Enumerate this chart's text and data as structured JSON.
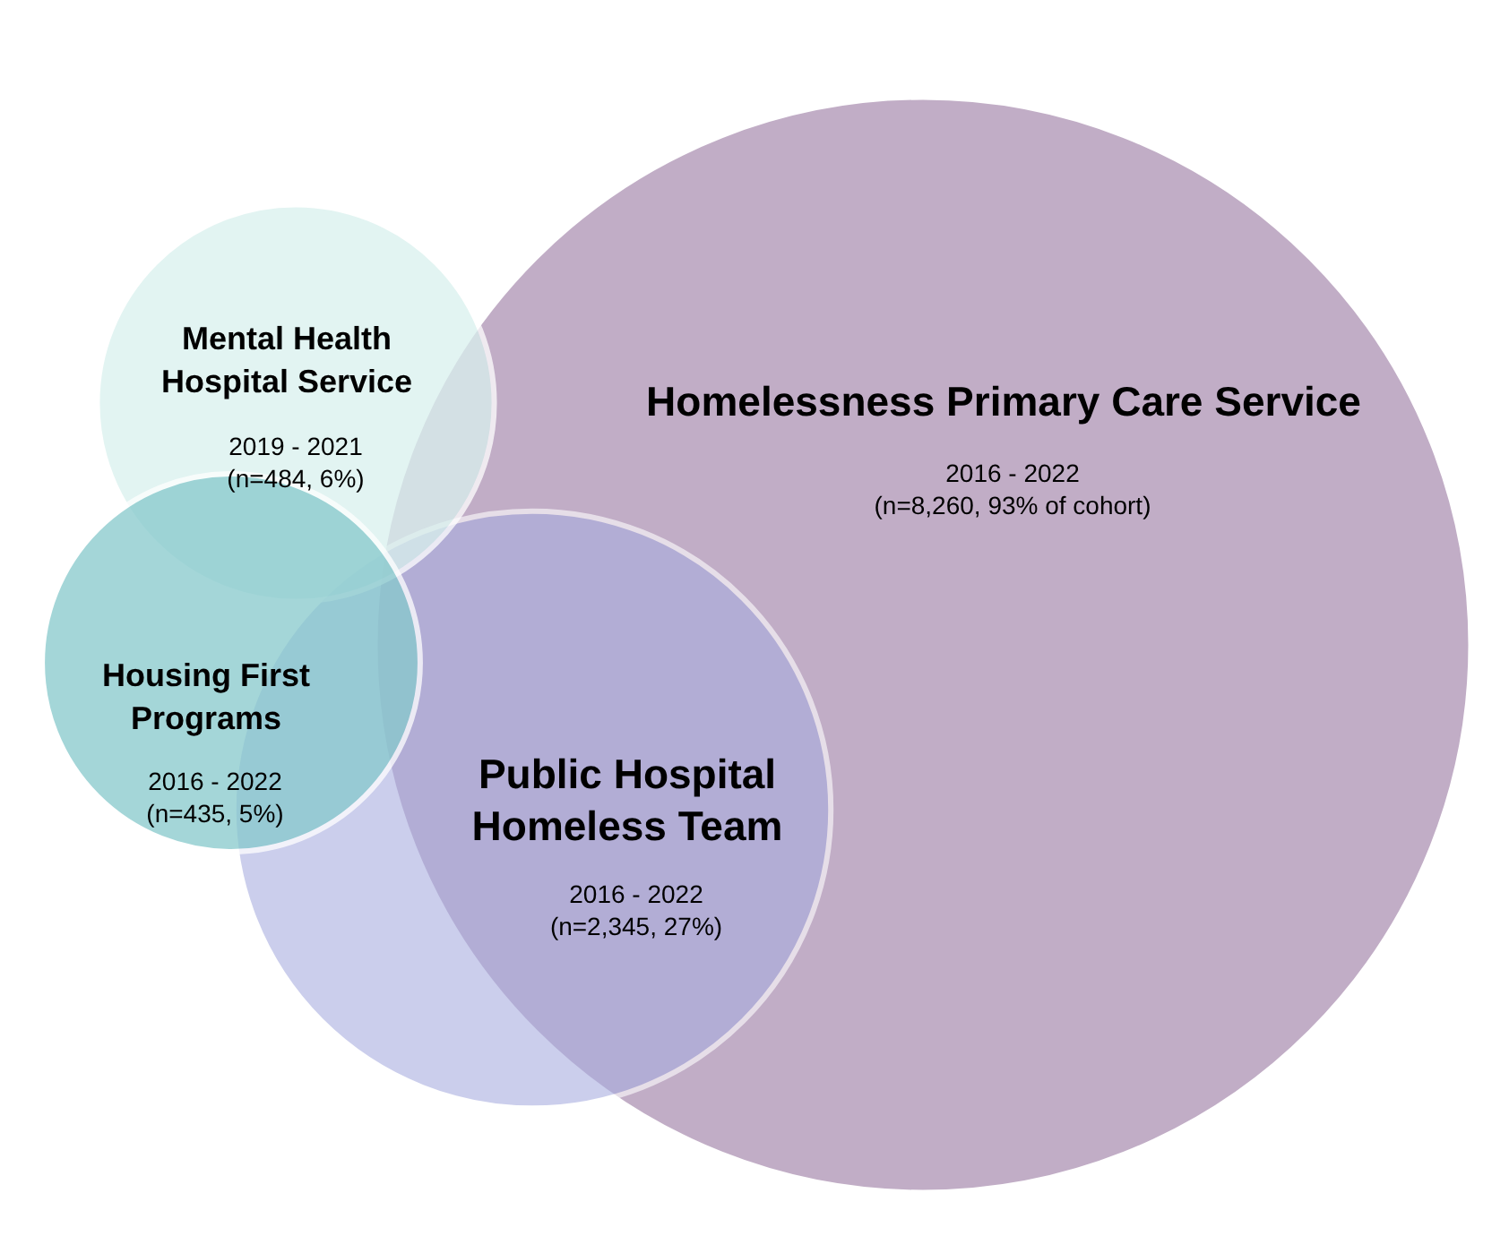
{
  "chart_data": {
    "type": "other",
    "categories": [
      "Homelessness Primary Care Service",
      "Public Hospital Homeless Team",
      "Mental Health Hospital Service",
      "Housing First Programs"
    ],
    "values": [
      8260,
      2345,
      484,
      435
    ],
    "value_labels": [
      "(n=8,260, 93% of cohort)",
      "(n=2,345, 27%)",
      "(n=484, 6%)",
      "(n=435, 5%)"
    ],
    "annotations": [
      "2016 - 2022",
      "2016 - 2022",
      "2019 - 2021",
      "2016 - 2022"
    ],
    "colors": [
      "#bea9c3",
      "#a9aee0",
      "#d9f1ee",
      "#86c9cc"
    ]
  }
}
